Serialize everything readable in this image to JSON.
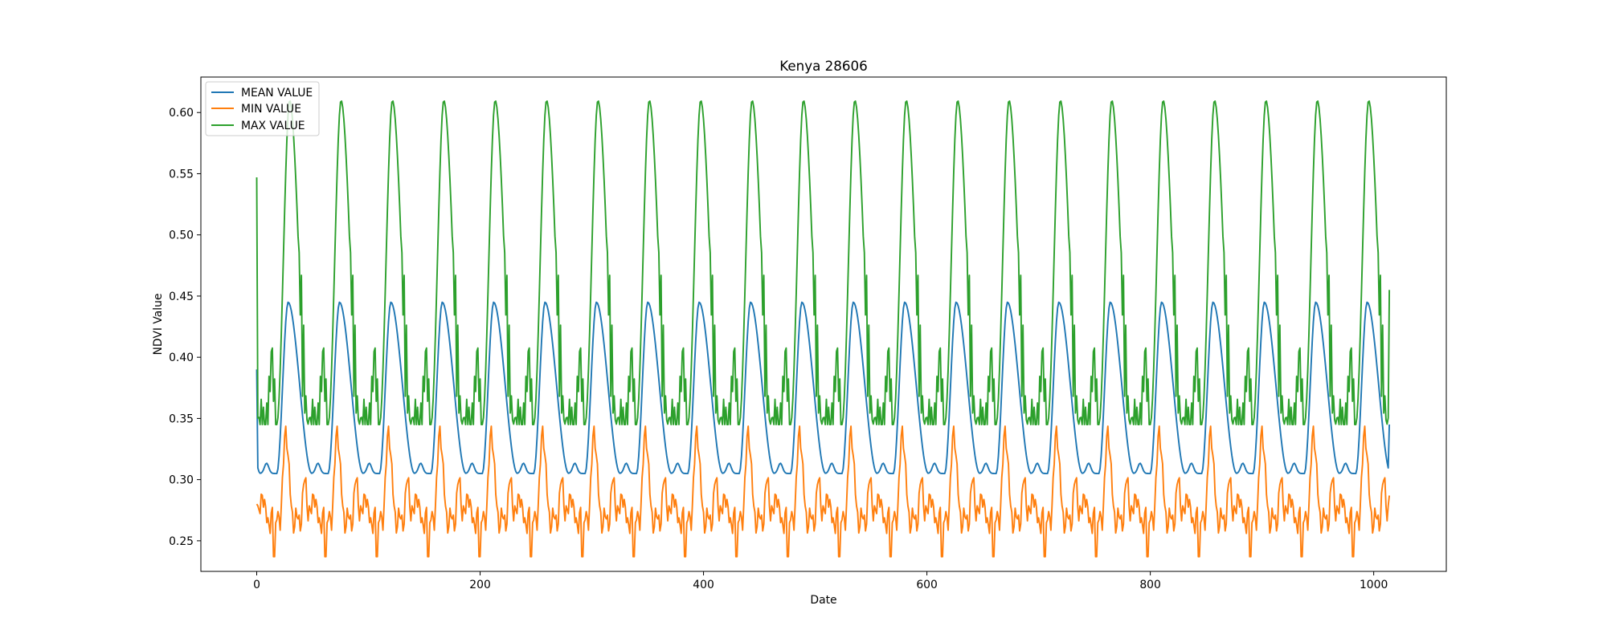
{
  "chart_data": {
    "type": "line",
    "title": "Kenya 28606",
    "xlabel": "Date",
    "ylabel": "NDVI Value",
    "xlim": [
      -50,
      1065
    ],
    "ylim": [
      0.225,
      0.629
    ],
    "xticks": [
      0,
      200,
      400,
      600,
      800,
      1000
    ],
    "xtick_labels": [
      "0",
      "200",
      "400",
      "600",
      "800",
      "1000"
    ],
    "yticks": [
      0.25,
      0.3,
      0.35,
      0.4,
      0.45,
      0.5,
      0.55,
      0.6
    ],
    "ytick_labels": [
      "0.25",
      "0.30",
      "0.35",
      "0.40",
      "0.45",
      "0.50",
      "0.55",
      "0.60"
    ],
    "grid": false,
    "legend_position": "top-left",
    "x_count": 1015,
    "cycle_length_approx": 46,
    "series": [
      {
        "name": "MEAN VALUE",
        "color": "#1f77b4",
        "start_value": 0.39,
        "peak": 0.445,
        "trough": 0.305,
        "end_value": 0.345
      },
      {
        "name": "MIN VALUE",
        "color": "#ff7f0e",
        "start_value": 0.28,
        "peak": 0.347,
        "trough": 0.242,
        "end_value": 0.287
      },
      {
        "name": "MAX VALUE",
        "color": "#2ca02c",
        "start_value": 0.547,
        "peak": 0.61,
        "trough": 0.345,
        "end_value": 0.455
      }
    ]
  }
}
